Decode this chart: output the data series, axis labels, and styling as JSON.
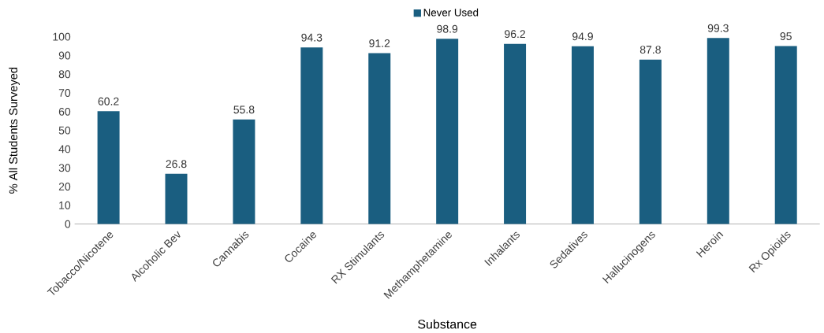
{
  "chart_data": {
    "type": "bar",
    "xlabel": "Substance",
    "ylabel": "% All Students Surveyed",
    "categories": [
      "Tobacco/Nicotene",
      "Alcoholic Bev",
      "Cannabis",
      "Cocaine",
      "RX Stimulants",
      "Methamphetamine",
      "Inhalants",
      "Sedatives",
      "Hallucinogens",
      "Heroin",
      "Rx Opioids"
    ],
    "series": [
      {
        "name": "Never Used",
        "color": "#1a5e80",
        "values": [
          60.2,
          26.8,
          55.8,
          94.3,
          91.2,
          98.9,
          96.2,
          94.9,
          87.8,
          99.3,
          95
        ]
      }
    ],
    "ylim": [
      0,
      100
    ],
    "yticks": [
      0,
      10,
      20,
      30,
      40,
      50,
      60,
      70,
      80,
      90,
      100
    ],
    "data_labels": true,
    "legend": "top"
  }
}
